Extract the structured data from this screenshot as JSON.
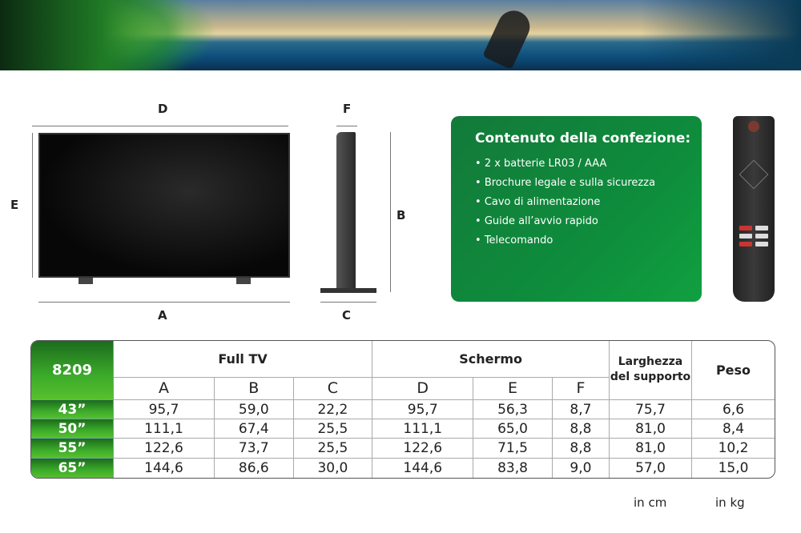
{
  "diagram": {
    "labels": {
      "D": "D",
      "E": "E",
      "A": "A",
      "F": "F",
      "B": "B",
      "C": "C"
    }
  },
  "package": {
    "title": "Contenuto della confezione:",
    "items": [
      "2 x batterie LR03 / AAA",
      "Brochure legale e sulla sicurezza",
      "Cavo di alimentazione",
      "Guide all’avvio rapido",
      "Telecomando"
    ]
  },
  "table": {
    "model": "8209",
    "groups": [
      "Full TV",
      "Schermo"
    ],
    "support_width": "Larghezza del supporto",
    "weight": "Peso",
    "subheaders": [
      "A",
      "B",
      "C",
      "D",
      "E",
      "F"
    ],
    "rows": [
      {
        "size": "43”",
        "values": [
          "95,7",
          "59,0",
          "22,2",
          "95,7",
          "56,3",
          "8,7",
          "75,7",
          "6,6"
        ]
      },
      {
        "size": "50”",
        "values": [
          "111,1",
          "67,4",
          "25,5",
          "111,1",
          "65,0",
          "8,8",
          "81,0",
          "8,4"
        ]
      },
      {
        "size": "55”",
        "values": [
          "122,6",
          "73,7",
          "25,5",
          "122,6",
          "71,5",
          "8,8",
          "81,0",
          "10,2"
        ]
      },
      {
        "size": "65”",
        "values": [
          "144,6",
          "86,6",
          "30,0",
          "144,6",
          "83,8",
          "9,0",
          "57,0",
          "15,0"
        ]
      }
    ]
  },
  "units": {
    "cm": "in cm",
    "kg": "in kg"
  }
}
